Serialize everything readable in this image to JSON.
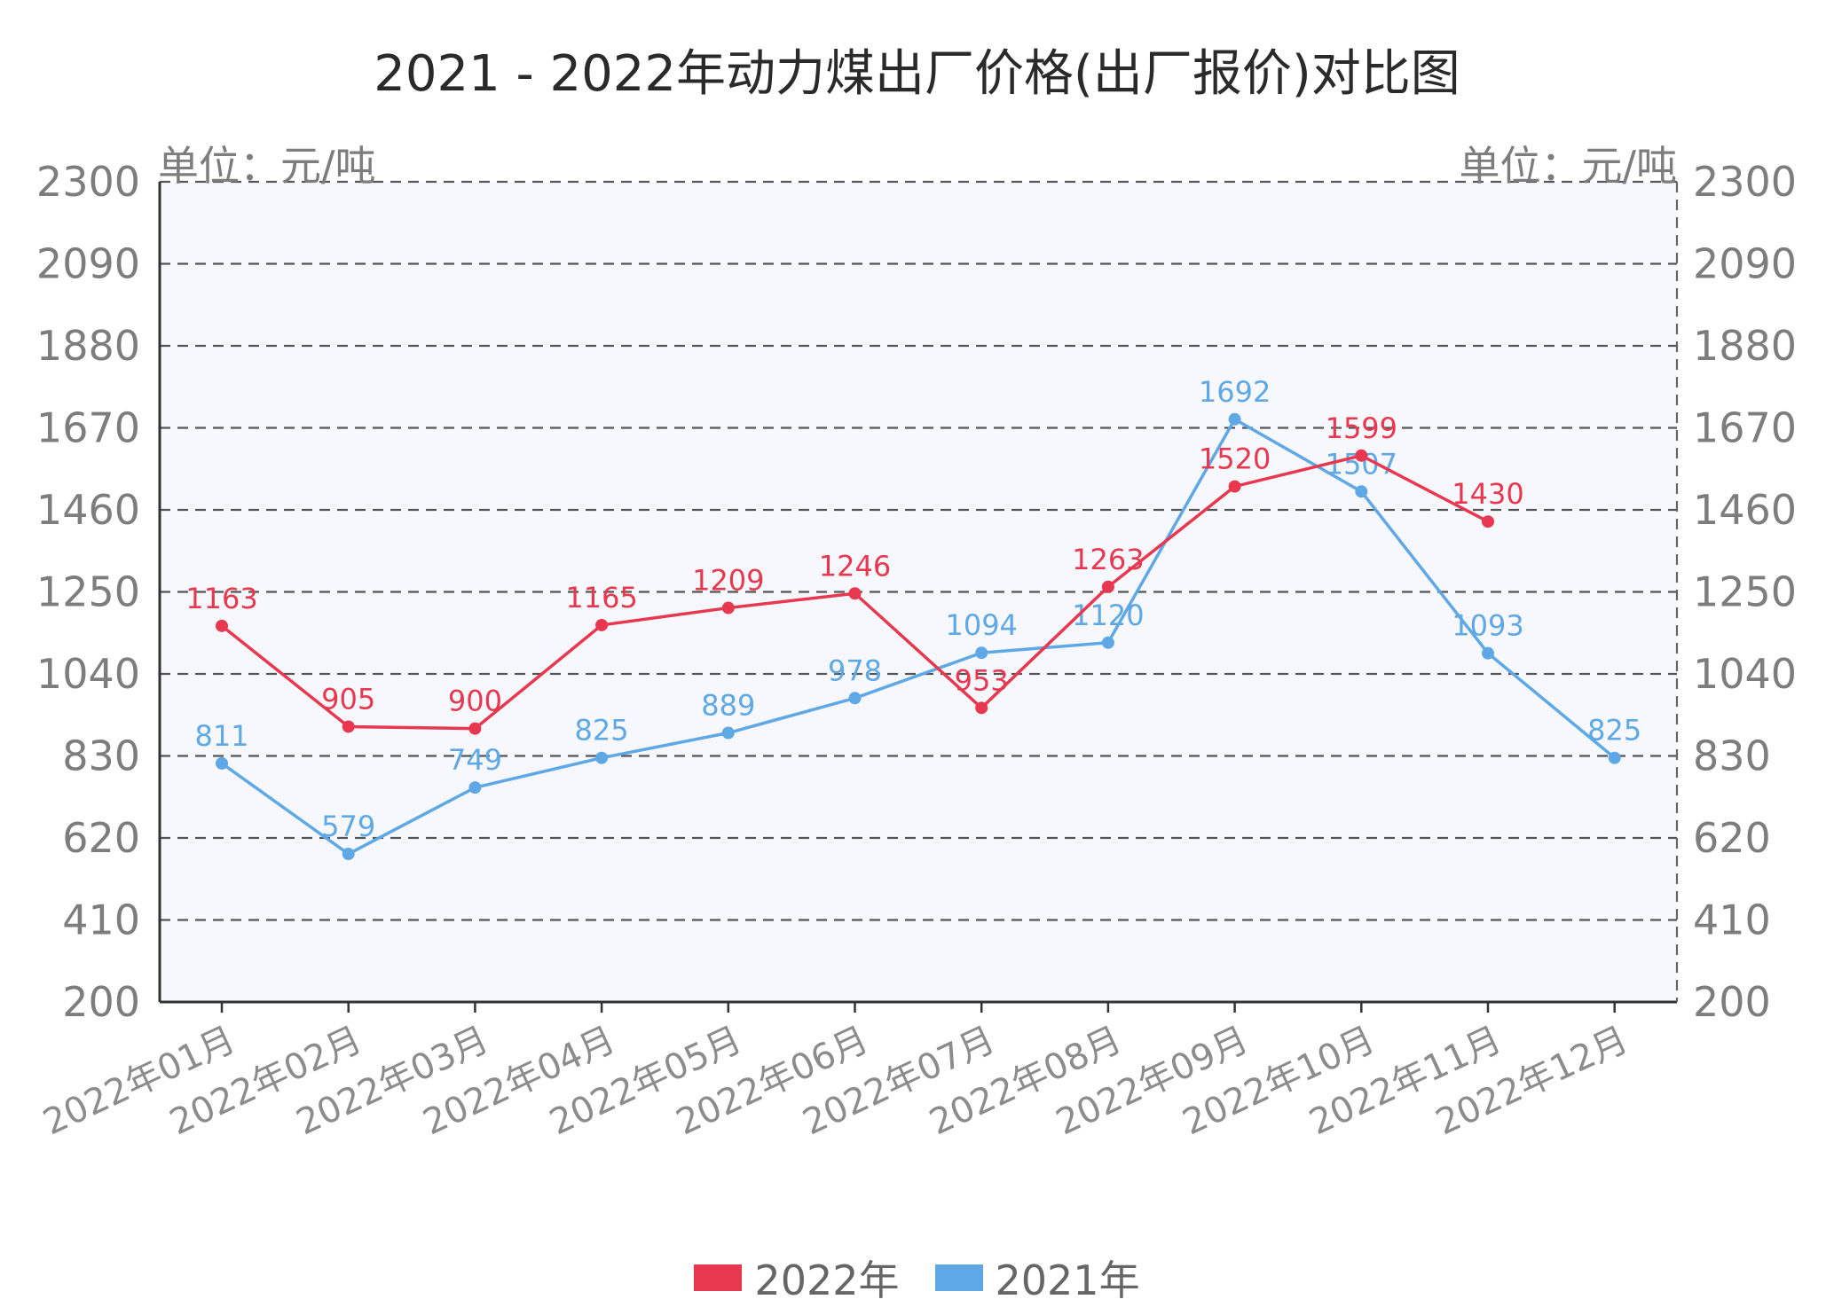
{
  "chart_data": {
    "type": "line",
    "title": "2021 - 2022年动力煤出厂价格(出厂报价)对比图",
    "unit_left": "单位：元/吨",
    "unit_right": "单位：元/吨",
    "categories": [
      "2022年01月",
      "2022年02月",
      "2022年03月",
      "2022年04月",
      "2022年05月",
      "2022年06月",
      "2022年07月",
      "2022年08月",
      "2022年09月",
      "2022年10月",
      "2022年11月",
      "2022年12月"
    ],
    "ylim": [
      200,
      2300
    ],
    "yticks": [
      200,
      410,
      620,
      830,
      1040,
      1250,
      1460,
      1670,
      1880,
      2090,
      2300
    ],
    "grid": true,
    "legend_position": "bottom",
    "series": [
      {
        "name": "2022年",
        "color": "#e8384f",
        "values": [
          1163,
          905,
          900,
          1165,
          1209,
          1246,
          953,
          1263,
          1520,
          1599,
          1430,
          null
        ]
      },
      {
        "name": "2021年",
        "color": "#5fa8e6",
        "values": [
          811,
          579,
          749,
          825,
          889,
          978,
          1094,
          1120,
          1692,
          1507,
          1093,
          825
        ]
      }
    ]
  }
}
